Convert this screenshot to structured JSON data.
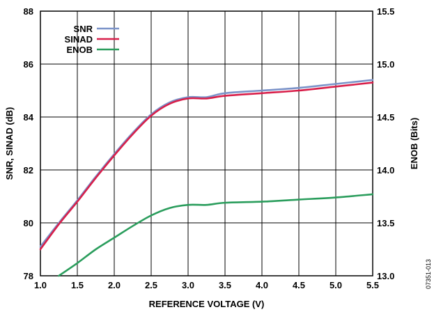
{
  "chart_data": {
    "type": "line",
    "title": "",
    "xlabel": "REFERENCE VOLTAGE (V)",
    "ylabel_left": "SNR, SINAD (dB)",
    "ylabel_right": "ENOB (Bits)",
    "xlim": [
      1.0,
      5.5
    ],
    "ylim_left": [
      78,
      88
    ],
    "ylim_right": [
      13.0,
      15.5
    ],
    "x_ticks": [
      "1.0",
      "1.5",
      "2.0",
      "2.5",
      "3.0",
      "3.5",
      "4.0",
      "4.5",
      "5.0",
      "5.5"
    ],
    "y_left_ticks": [
      "78",
      "80",
      "82",
      "84",
      "86",
      "88"
    ],
    "y_right_ticks": [
      "13.0",
      "13.5",
      "14.0",
      "14.5",
      "15.0",
      "15.5"
    ],
    "grid": true,
    "legend_position": "top-left",
    "series": [
      {
        "name": "SNR",
        "axis": "left",
        "color": "#7b93c9",
        "x": [
          1.0,
          1.25,
          1.5,
          1.75,
          2.0,
          2.25,
          2.5,
          2.75,
          3.0,
          3.25,
          3.5,
          4.0,
          4.5,
          5.0,
          5.5
        ],
        "y": [
          79.1,
          80.0,
          80.85,
          81.75,
          82.6,
          83.4,
          84.1,
          84.55,
          84.75,
          84.75,
          84.9,
          85.0,
          85.1,
          85.25,
          85.4
        ]
      },
      {
        "name": "SINAD",
        "axis": "left",
        "color": "#d81e49",
        "x": [
          1.0,
          1.25,
          1.5,
          1.75,
          2.0,
          2.25,
          2.5,
          2.75,
          3.0,
          3.25,
          3.5,
          4.0,
          4.5,
          5.0,
          5.5
        ],
        "y": [
          79.0,
          79.95,
          80.8,
          81.7,
          82.55,
          83.35,
          84.05,
          84.5,
          84.7,
          84.7,
          84.8,
          84.9,
          85.0,
          85.15,
          85.3
        ]
      },
      {
        "name": "ENOB",
        "axis": "right",
        "color": "#2a9d5c",
        "x": [
          1.25,
          1.5,
          1.75,
          2.0,
          2.25,
          2.5,
          2.75,
          3.0,
          3.25,
          3.5,
          4.0,
          4.5,
          5.0,
          5.5
        ],
        "y": [
          13.0,
          13.12,
          13.25,
          13.36,
          13.47,
          13.57,
          13.64,
          13.67,
          13.67,
          13.69,
          13.7,
          13.72,
          13.74,
          13.77
        ]
      }
    ]
  },
  "figure_id": "07351-013"
}
